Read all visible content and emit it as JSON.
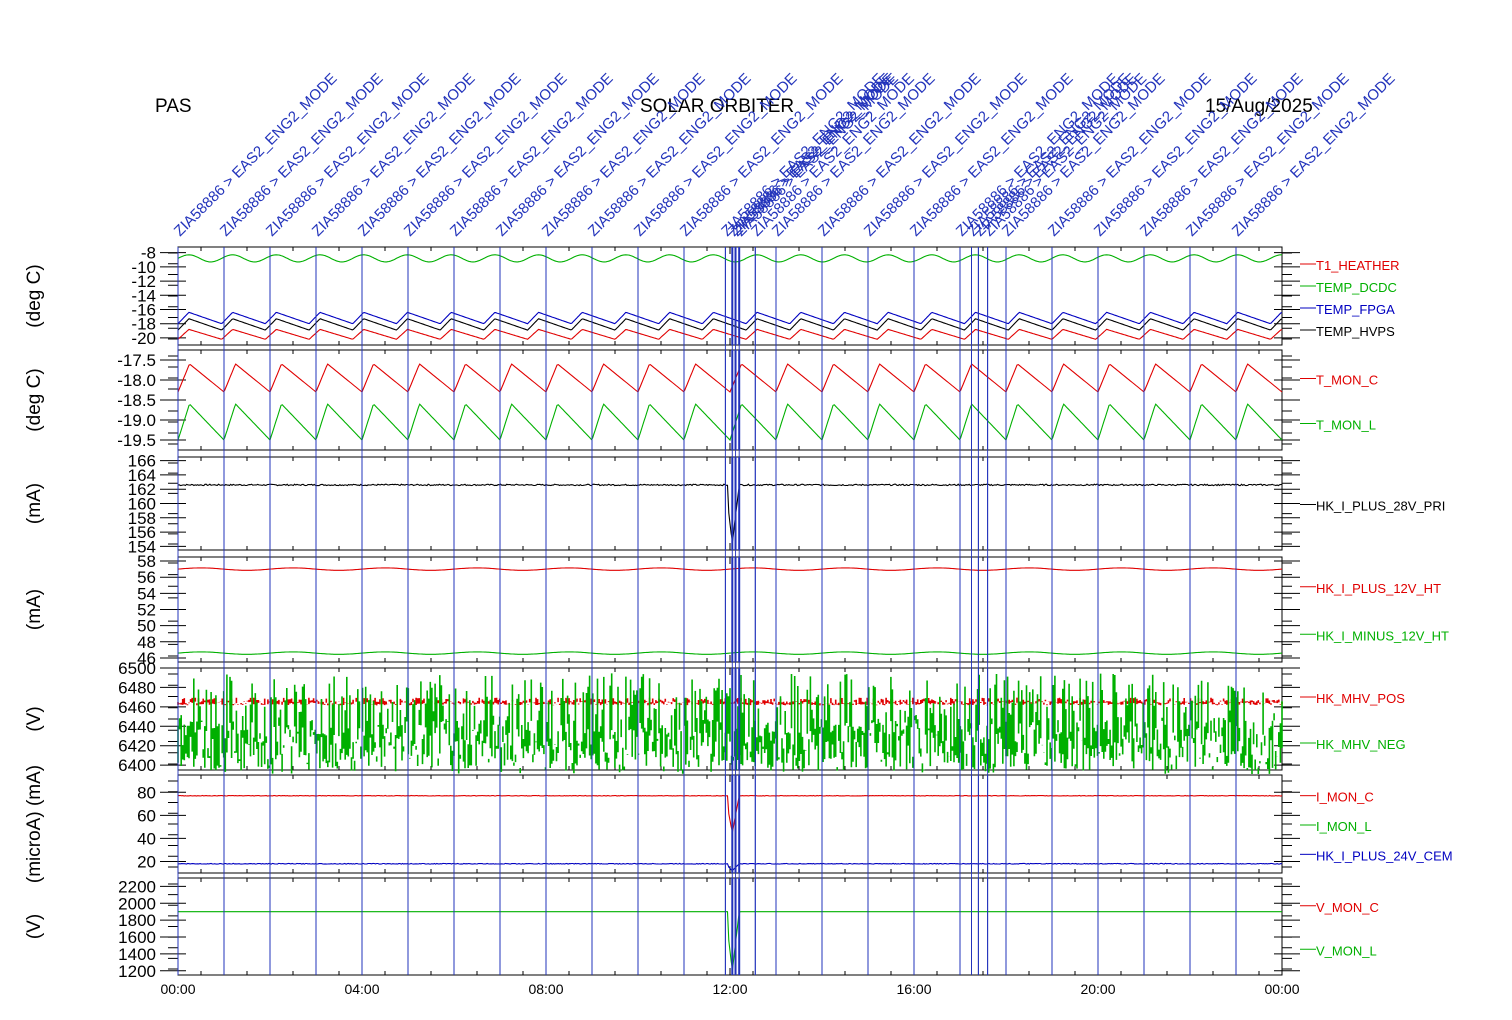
{
  "header": {
    "left": "PAS",
    "center": "SOLAR ORBITER",
    "right": "15/Aug/2025"
  },
  "colors": {
    "red": "#e00000",
    "green": "#00b000",
    "blue": "#0000c0",
    "black": "#000000",
    "event_blue": "#2233bb"
  },
  "chart_data": {
    "type": "line",
    "x_axis": {
      "unit": "hours",
      "range": [
        0,
        24
      ],
      "ticks": [
        0,
        4,
        8,
        12,
        16,
        20,
        24
      ],
      "tick_labels": [
        "00:00",
        "04:00",
        "08:00",
        "12:00",
        "16:00",
        "20:00",
        "00:00"
      ]
    },
    "event_label": "ZIA58886 > EAS2_ENG2_MODE",
    "events": [
      0,
      1,
      2,
      3,
      4,
      5,
      6,
      7,
      8,
      9,
      10,
      11,
      11.9,
      12.05,
      12.12,
      12.2,
      12.55,
      13,
      14,
      15,
      16,
      17,
      17.25,
      17.4,
      17.6,
      18,
      19,
      20,
      21,
      22,
      23
    ],
    "panels": [
      {
        "ylabel": "(deg C)",
        "ylim": [
          -21,
          -7.2
        ],
        "ticks": [
          -20,
          -18,
          -16,
          -14,
          -12,
          -10,
          -8
        ],
        "tick_labels": [
          "-20",
          "-18",
          "-16",
          "-14",
          "-12",
          "-10",
          "-8"
        ],
        "series": [
          {
            "name": "T1_HEATHER",
            "color": "red",
            "kind": "saw",
            "base": -19.5,
            "amp": 0.7,
            "period": 0.95
          },
          {
            "name": "TEMP_DCDC",
            "color": "green",
            "kind": "sine",
            "base": -8.8,
            "amp": 0.5,
            "period": 0.95
          },
          {
            "name": "TEMP_FPGA",
            "color": "blue",
            "kind": "saw",
            "base": -17.2,
            "amp": 0.8,
            "period": 0.95
          },
          {
            "name": "TEMP_HVPS",
            "color": "black",
            "kind": "saw",
            "base": -18.1,
            "amp": 0.8,
            "period": 0.95
          }
        ]
      },
      {
        "ylabel": "(deg C)",
        "ylim": [
          -19.75,
          -17.25
        ],
        "ticks": [
          -19.5,
          -19.0,
          -18.5,
          -18.0,
          -17.5
        ],
        "tick_labels": [
          "-19.5",
          "-19.0",
          "-18.5",
          "-18.0",
          "-17.5"
        ],
        "series": [
          {
            "name": "T_MON_C",
            "color": "red",
            "kind": "saw",
            "base": -17.95,
            "amp": 0.35,
            "period": 1.0
          },
          {
            "name": "T_MON_L",
            "color": "green",
            "kind": "saw",
            "base": -19.05,
            "amp": 0.45,
            "period": 1.0
          }
        ]
      },
      {
        "ylabel": "(mA)",
        "ylim": [
          153.5,
          166.5
        ],
        "ticks": [
          154,
          156,
          158,
          160,
          162,
          164,
          166
        ],
        "tick_labels": [
          "154",
          "156",
          "158",
          "160",
          "162",
          "164",
          "166"
        ],
        "series": [
          {
            "name": "HK_I_PLUS_28V_PRI",
            "color": "black",
            "kind": "flat",
            "base": 162.6,
            "amp": 0.1,
            "dip": 154.5
          }
        ]
      },
      {
        "ylabel": "(mA)",
        "ylim": [
          45.5,
          58.5
        ],
        "ticks": [
          46,
          48,
          50,
          52,
          54,
          56,
          58
        ],
        "tick_labels": [
          "46",
          "48",
          "50",
          "52",
          "54",
          "56",
          "58"
        ],
        "series": [
          {
            "name": "HK_I_PLUS_12V_HT",
            "color": "red",
            "kind": "sine",
            "base": 57.0,
            "amp": 0.15,
            "period": 2.0
          },
          {
            "name": "HK_I_MINUS_12V_HT",
            "color": "green",
            "kind": "sine",
            "base": 46.6,
            "amp": 0.15,
            "period": 2.0
          }
        ]
      },
      {
        "ylabel": "(V)",
        "ylim": [
          6395,
          6500
        ],
        "ticks": [
          6400,
          6420,
          6440,
          6460,
          6480,
          6500
        ],
        "tick_labels": [
          "6400",
          "6420",
          "6440",
          "6460",
          "6480",
          "6500"
        ],
        "series": [
          {
            "name": "HK_MHV_POS",
            "color": "red",
            "kind": "band",
            "base": 6463,
            "amp": 5
          },
          {
            "name": "HK_MHV_NEG",
            "color": "green",
            "kind": "band",
            "base": 6410,
            "amp": 65
          }
        ]
      },
      {
        "ylabel": "(microA) (mA)",
        "ylim": [
          10,
          95
        ],
        "ticks": [
          20,
          40,
          60,
          80
        ],
        "tick_labels": [
          "20",
          "40",
          "60",
          "80"
        ],
        "series": [
          {
            "name": "I_MON_C",
            "color": "red",
            "kind": "flat",
            "base": 77,
            "amp": 0.2,
            "dip": 45
          },
          {
            "name": "I_MON_L",
            "color": "green",
            "kind": "hidden",
            "base": 77,
            "amp": 0
          },
          {
            "name": "HK_I_PLUS_24V_CEM",
            "color": "blue",
            "kind": "flat",
            "base": 18,
            "amp": 0.3,
            "dip": 12
          }
        ]
      },
      {
        "ylabel": "(V)",
        "ylim": [
          1150,
          2300
        ],
        "ticks": [
          1200,
          1400,
          1600,
          1800,
          2000,
          2200
        ],
        "tick_labels": [
          "1200",
          "1400",
          "1600",
          "1800",
          "2000",
          "2200"
        ],
        "series": [
          {
            "name": "V_MON_C",
            "color": "red",
            "kind": "hidden",
            "base": 1900,
            "amp": 0
          },
          {
            "name": "V_MON_L",
            "color": "green",
            "kind": "flat",
            "base": 1900,
            "amp": 0,
            "dip": 1200
          }
        ]
      }
    ]
  }
}
